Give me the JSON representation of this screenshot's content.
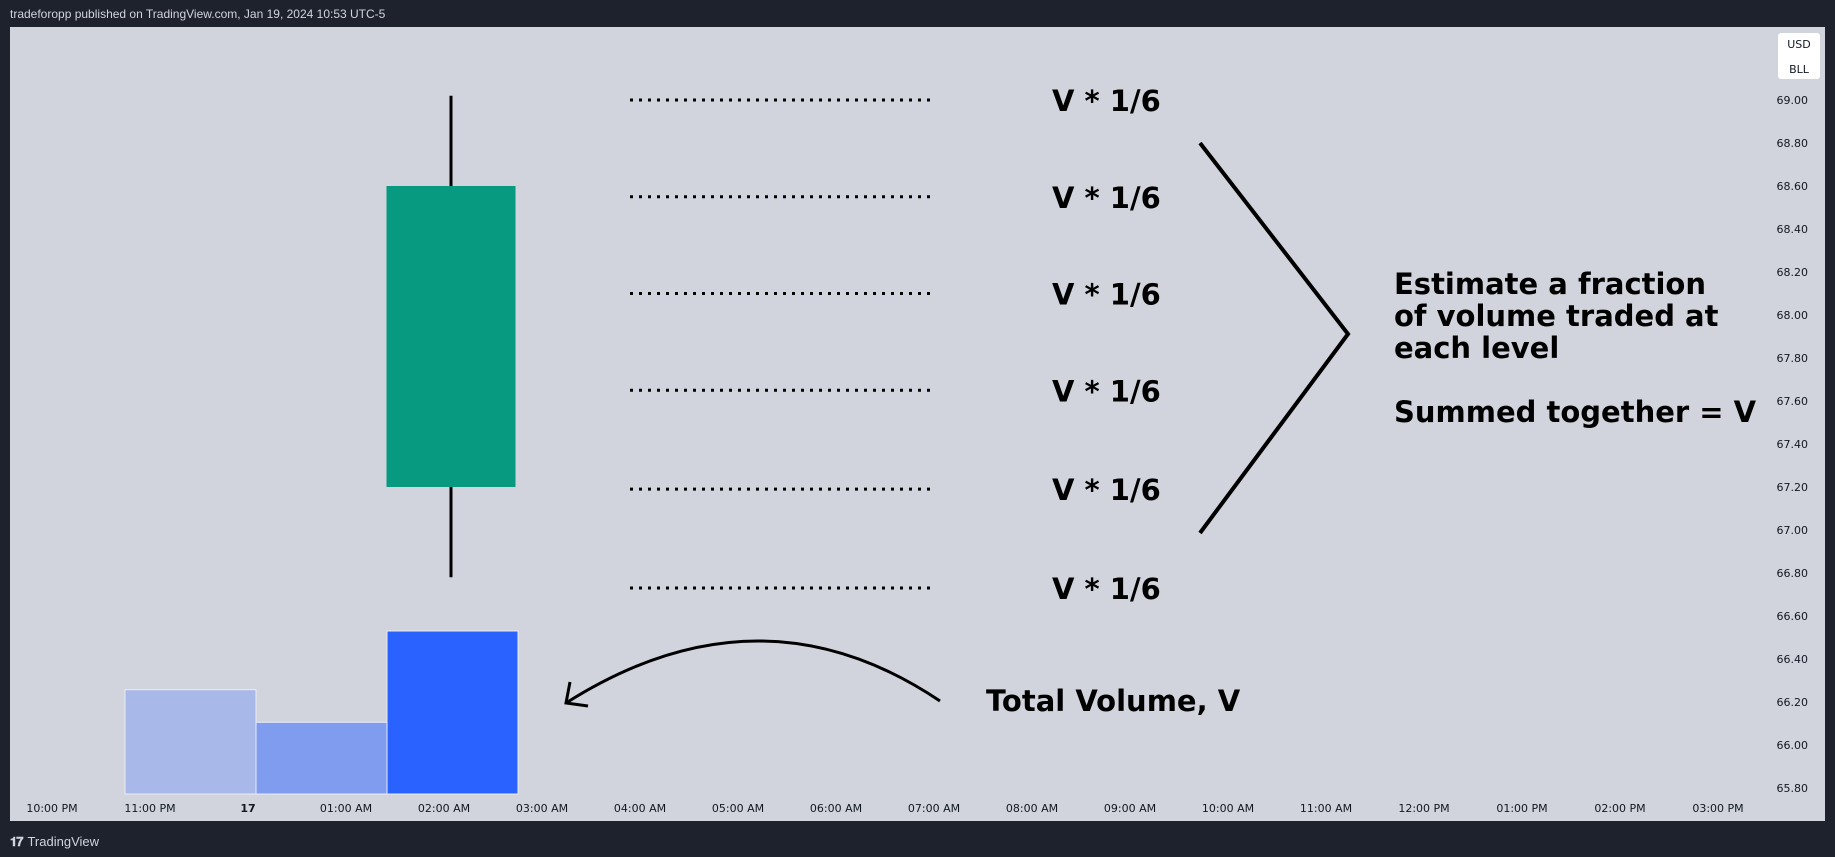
{
  "header": {
    "published_text": "tradeforopp published on TradingView.com, Jan 19, 2024 10:53 UTC-5"
  },
  "footer": {
    "brand_icon": "tradingview-logo-icon",
    "brand_label": "TradingView"
  },
  "colors": {
    "background": "#d1d4dc",
    "frame": "#1e222d",
    "candle_up": "#089981",
    "volume_bars": [
      "#a8b8e8",
      "#7f9cee",
      "#2962ff"
    ],
    "annotation": "#000000"
  },
  "chart_data": {
    "type": "candlestick",
    "symbol": "BLL",
    "currency": "USD",
    "x_ticks": [
      "10:00 PM",
      "11:00 PM",
      "17",
      "01:00 AM",
      "02:00 AM",
      "03:00 AM",
      "04:00 AM",
      "05:00 AM",
      "06:00 AM",
      "07:00 AM",
      "08:00 AM",
      "09:00 AM",
      "10:00 AM",
      "11:00 AM",
      "12:00 PM",
      "01:00 PM",
      "02:00 PM",
      "03:00 PM"
    ],
    "y_ticks": [
      "69.00",
      "68.80",
      "68.60",
      "68.40",
      "68.20",
      "68.00",
      "67.80",
      "67.60",
      "67.40",
      "67.20",
      "67.00",
      "66.80",
      "66.60",
      "66.40",
      "66.20",
      "66.00",
      "65.80"
    ],
    "ylim": [
      65.8,
      69.0
    ],
    "candles": [
      {
        "time": "01:30 AM",
        "open": 67.2,
        "high": 69.02,
        "low": 66.78,
        "close": 68.6
      }
    ],
    "volume": [
      {
        "time": "23:30",
        "relative": 0.64
      },
      {
        "time": "00:30",
        "relative": 0.44
      },
      {
        "time": "01:30",
        "relative": 1.0
      }
    ],
    "annotations": {
      "level_labels": [
        "V * 1/6",
        "V * 1/6",
        "V * 1/6",
        "V * 1/6",
        "V * 1/6",
        "V * 1/6"
      ],
      "level_prices": [
        69.0,
        68.55,
        68.1,
        67.65,
        67.19,
        66.73
      ],
      "note_lines": [
        "Estimate a fraction",
        "of volume traded at",
        "each level",
        "",
        "Summed together = V"
      ],
      "total_volume_label": "Total Volume, V"
    }
  }
}
